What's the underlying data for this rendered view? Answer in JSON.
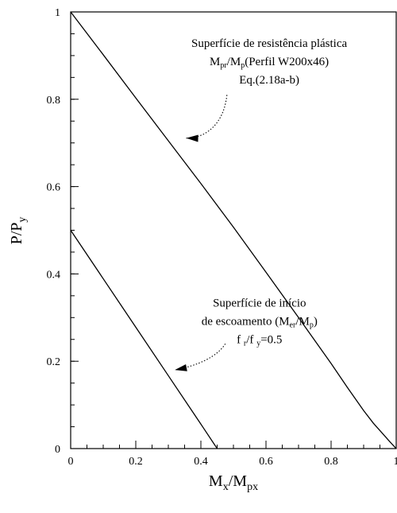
{
  "chart_data": {
    "type": "line",
    "title": "",
    "xlabel": {
      "main": "M",
      "sub1": "x",
      "sep": "/M",
      "sub2": "px"
    },
    "ylabel": {
      "main": "P/P",
      "sub": "y"
    },
    "xlim": [
      0,
      1
    ],
    "ylim": [
      0,
      1
    ],
    "x_ticks": [
      {
        "value": 0,
        "label": "0"
      },
      {
        "value": 0.2,
        "label": "0.2"
      },
      {
        "value": 0.4,
        "label": "0.4"
      },
      {
        "value": 0.6,
        "label": "0.6"
      },
      {
        "value": 0.8,
        "label": "0.8"
      },
      {
        "value": 1,
        "label": "1"
      }
    ],
    "y_ticks": [
      {
        "value": 0,
        "label": "0"
      },
      {
        "value": 0.2,
        "label": "0.2"
      },
      {
        "value": 0.4,
        "label": "0.4"
      },
      {
        "value": 0.6,
        "label": "0.6"
      },
      {
        "value": 0.8,
        "label": "0.8"
      },
      {
        "value": 1,
        "label": "1"
      }
    ],
    "minor_x_step": 0.05,
    "minor_y_step": 0.05,
    "grid": false,
    "series": [
      {
        "points": [
          [
            0,
            1
          ],
          [
            0.1,
            0.902
          ],
          [
            0.2,
            0.803
          ],
          [
            0.3,
            0.705
          ],
          [
            0.4,
            0.607
          ],
          [
            0.5,
            0.507
          ],
          [
            0.6,
            0.404
          ],
          [
            0.7,
            0.3
          ],
          [
            0.8,
            0.195
          ],
          [
            0.85,
            0.14
          ],
          [
            0.9,
            0.087
          ],
          [
            0.93,
            0.058
          ],
          [
            0.96,
            0.033
          ],
          [
            0.98,
            0.016
          ],
          [
            0.995,
            0.004
          ],
          [
            1,
            0
          ]
        ]
      },
      {
        "points": [
          [
            0,
            0.5
          ],
          [
            0.1,
            0.389
          ],
          [
            0.2,
            0.278
          ],
          [
            0.3,
            0.167
          ],
          [
            0.4,
            0.056
          ],
          [
            0.45,
            0
          ]
        ]
      }
    ],
    "annotations": [
      {
        "lines": [
          [
            {
              "t": "Superfície de resistência plástica"
            }
          ],
          [
            {
              "t": "M"
            },
            {
              "t": "pr",
              "sub": true
            },
            {
              "t": "/M"
            },
            {
              "t": "p",
              "sub": true
            },
            {
              "t": "(Perfil W200x46)"
            }
          ],
          [
            {
              "t": "Eq.(2.18a-b)"
            }
          ]
        ],
        "text_anchor_point": [
          0.61,
          0.92
        ],
        "leader": [
          [
            0.48,
            0.81
          ],
          [
            0.47,
            0.74
          ],
          [
            0.41,
            0.71
          ],
          [
            0.355,
            0.711
          ]
        ]
      },
      {
        "lines": [
          [
            {
              "t": "Superfície de início"
            }
          ],
          [
            {
              "t": "de escoamento (M"
            },
            {
              "t": "er",
              "sub": true
            },
            {
              "t": "/M"
            },
            {
              "t": "p",
              "sub": true
            },
            {
              "t": ")"
            }
          ],
          [
            {
              "t": "f "
            },
            {
              "t": "r",
              "sub": true
            },
            {
              "t": "/f "
            },
            {
              "t": "y",
              "sub": true
            },
            {
              "t": "=0.5"
            }
          ]
        ],
        "text_anchor_point": [
          0.58,
          0.325
        ],
        "leader": [
          [
            0.475,
            0.24
          ],
          [
            0.45,
            0.21
          ],
          [
            0.39,
            0.19
          ],
          [
            0.32,
            0.18
          ]
        ]
      }
    ]
  }
}
